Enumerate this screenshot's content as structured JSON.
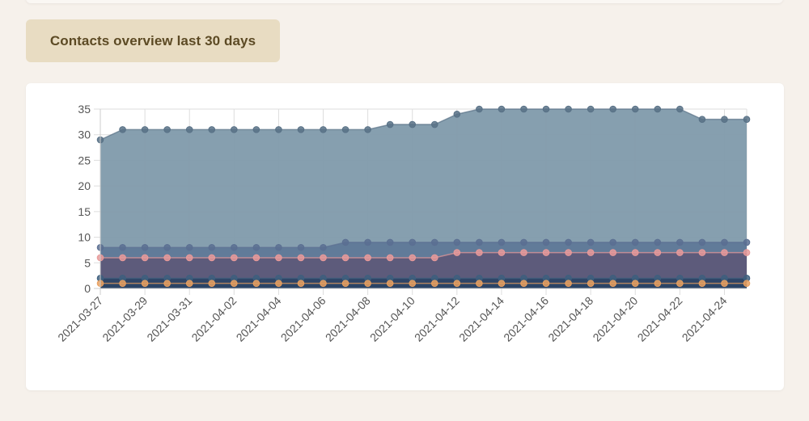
{
  "header": {
    "title": "Contacts overview last 30 days"
  },
  "chart_data": {
    "type": "area",
    "title": "Contacts overview last 30 days",
    "xlabel": "",
    "ylabel": "",
    "ylim": [
      0,
      35
    ],
    "yticks": [
      0,
      5,
      10,
      15,
      20,
      25,
      30,
      35
    ],
    "grid": true,
    "legend": "none",
    "x": [
      "2021-03-27",
      "2021-03-28",
      "2021-03-29",
      "2021-03-30",
      "2021-03-31",
      "2021-04-01",
      "2021-04-02",
      "2021-04-03",
      "2021-04-04",
      "2021-04-05",
      "2021-04-06",
      "2021-04-07",
      "2021-04-08",
      "2021-04-09",
      "2021-04-10",
      "2021-04-11",
      "2021-04-12",
      "2021-04-13",
      "2021-04-14",
      "2021-04-15",
      "2021-04-16",
      "2021-04-17",
      "2021-04-18",
      "2021-04-19",
      "2021-04-20",
      "2021-04-21",
      "2021-04-22",
      "2021-04-23",
      "2021-04-24",
      "2021-04-25"
    ],
    "x_tick_labels": [
      "2021-03-27",
      "2021-03-29",
      "2021-03-31",
      "2021-04-02",
      "2021-04-04",
      "2021-04-06",
      "2021-04-08",
      "2021-04-10",
      "2021-04-12",
      "2021-04-14",
      "2021-04-16",
      "2021-04-18",
      "2021-04-20",
      "2021-04-22",
      "2021-04-24"
    ],
    "series": [
      {
        "color": "#7f9aab",
        "point_color": "#587186",
        "values": [
          29,
          31,
          31,
          31,
          31,
          31,
          31,
          31,
          31,
          31,
          31,
          31,
          31,
          32,
          32,
          32,
          34,
          35,
          35,
          35,
          35,
          35,
          35,
          35,
          35,
          35,
          35,
          33,
          33,
          33
        ]
      },
      {
        "color": "#5b7495",
        "point_color": "#5b6f92",
        "values": [
          8,
          8,
          8,
          8,
          8,
          8,
          8,
          8,
          8,
          8,
          8,
          9,
          9,
          9,
          9,
          9,
          9,
          9,
          9,
          9,
          9,
          9,
          9,
          9,
          9,
          9,
          9,
          9,
          9,
          9
        ]
      },
      {
        "color": "#5d5676",
        "point_color": "#e89a9a",
        "values": [
          6,
          6,
          6,
          6,
          6,
          6,
          6,
          6,
          6,
          6,
          6,
          6,
          6,
          6,
          6,
          6,
          7,
          7,
          7,
          7,
          7,
          7,
          7,
          7,
          7,
          7,
          7,
          7,
          7,
          7
        ]
      },
      {
        "color": "#2b4566",
        "point_color": "#3e5f7e",
        "values": [
          2,
          2,
          2,
          2,
          2,
          2,
          2,
          2,
          2,
          2,
          2,
          2,
          2,
          2,
          2,
          2,
          2,
          2,
          2,
          2,
          2,
          2,
          2,
          2,
          2,
          2,
          2,
          2,
          2,
          2
        ]
      },
      {
        "color": "#2b4566",
        "point_color": "#e8a060",
        "values": [
          1,
          1,
          1,
          1,
          1,
          1,
          1,
          1,
          1,
          1,
          1,
          1,
          1,
          1,
          1,
          1,
          1,
          1,
          1,
          1,
          1,
          1,
          1,
          1,
          1,
          1,
          1,
          1,
          1,
          1
        ]
      }
    ]
  }
}
